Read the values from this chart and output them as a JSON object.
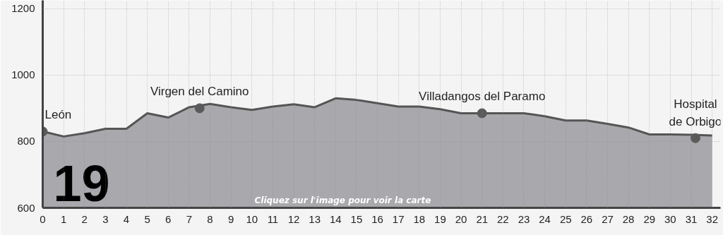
{
  "chart_data": {
    "type": "area",
    "x": [
      0,
      1,
      2,
      3,
      4,
      5,
      6,
      7,
      8,
      9,
      10,
      11,
      12,
      13,
      14,
      15,
      16,
      17,
      18,
      19,
      20,
      21,
      22,
      23,
      24,
      25,
      26,
      27,
      28,
      29,
      30,
      31,
      32
    ],
    "series": [
      {
        "color": "#a9a9ad",
        "values": [
          830,
          815,
          825,
          838,
          838,
          885,
          872,
          903,
          913,
          903,
          895,
          905,
          912,
          903,
          930,
          925,
          915,
          905,
          905,
          897,
          885,
          885,
          885,
          885,
          876,
          863,
          863,
          853,
          842,
          821,
          821,
          820,
          818
        ]
      },
      {
        "type": "scatter",
        "marker": "circle",
        "color": "#5a5a5a",
        "x": [
          0,
          7.5,
          21,
          31.2
        ],
        "values": [
          830,
          900,
          885,
          810
        ]
      }
    ],
    "annotations": [
      {
        "text": "León",
        "x": 0,
        "y": 830
      },
      {
        "text": "Virgen del Camino",
        "x": 7.5,
        "y": 900
      },
      {
        "text": "Villadangos del Paramo",
        "x": 21,
        "y": 885
      },
      {
        "text": "Hospital\nde Orbigo",
        "x": 31.2,
        "y": 810
      },
      "19",
      "Cliquez sur l'image pour voir la carte"
    ],
    "xlim": [
      0,
      32.4
    ],
    "ylim": [
      600,
      1225
    ],
    "xticks": [
      0,
      1,
      2,
      3,
      4,
      5,
      6,
      7,
      8,
      9,
      10,
      11,
      12,
      13,
      14,
      15,
      16,
      17,
      18,
      19,
      20,
      21,
      22,
      23,
      24,
      25,
      26,
      27,
      28,
      29,
      30,
      31,
      32
    ],
    "yticks": [
      600,
      800,
      1000,
      1200
    ],
    "grid": true
  }
}
